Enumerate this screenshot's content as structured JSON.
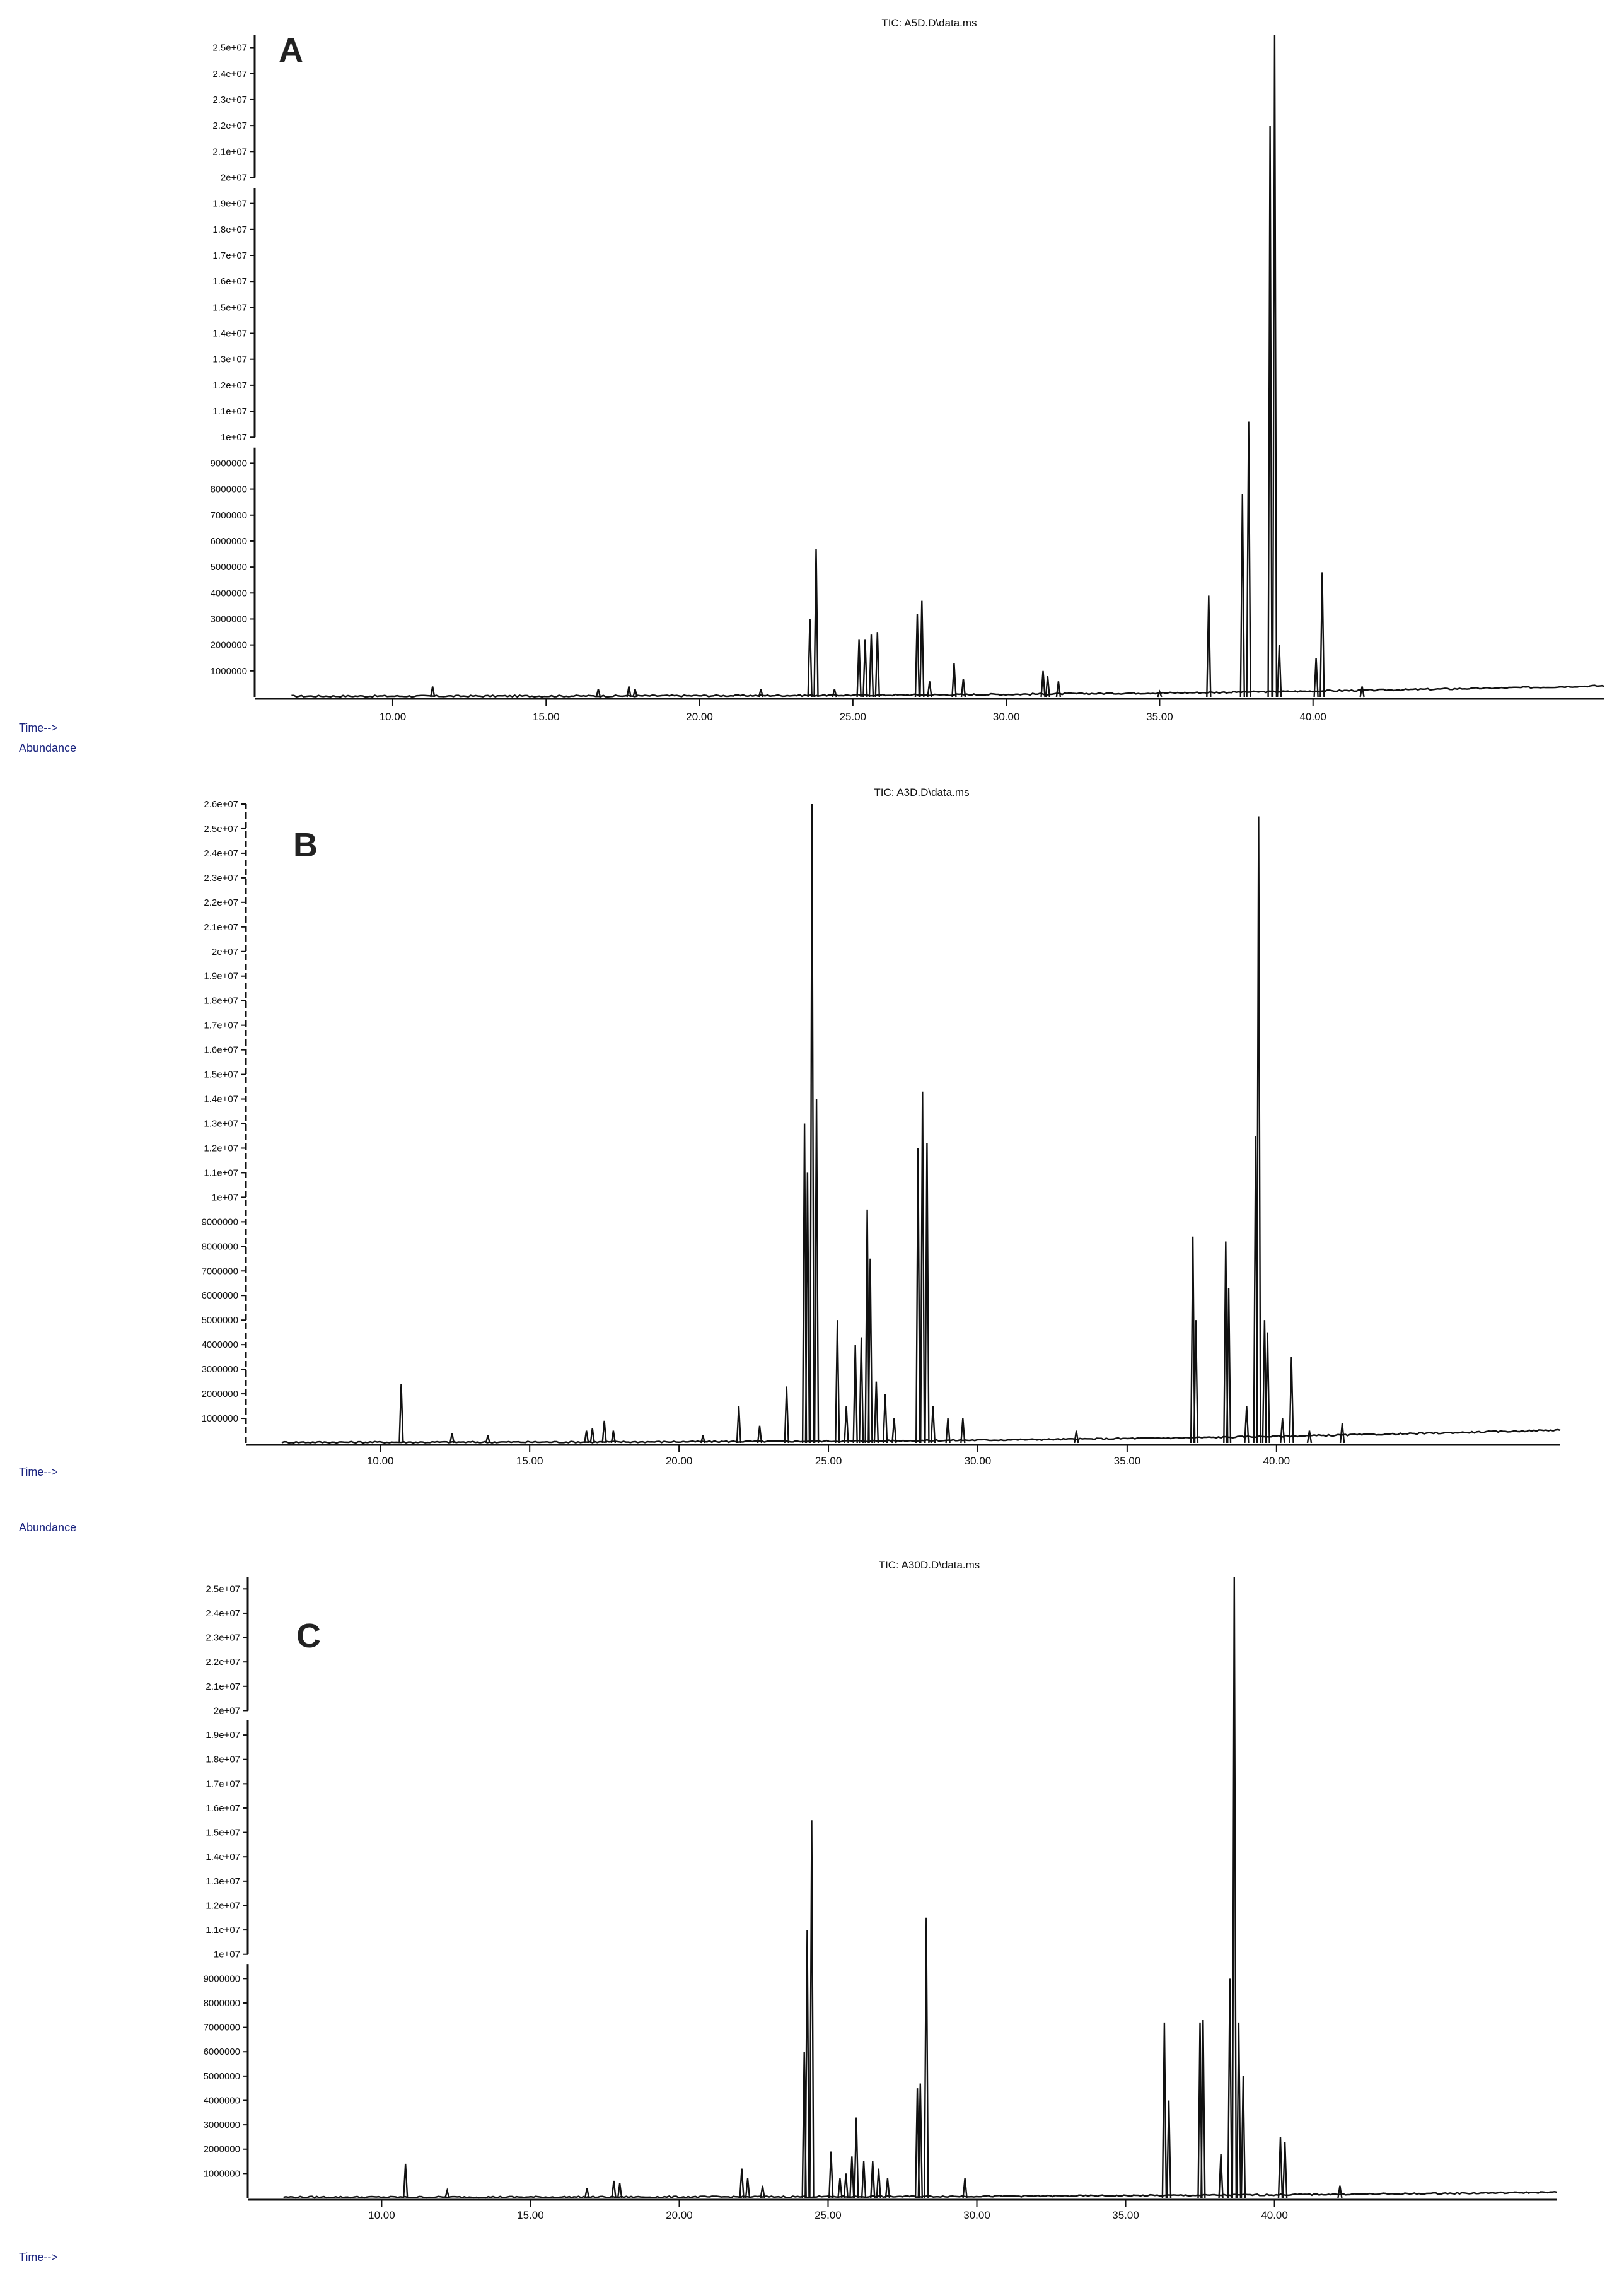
{
  "chart_data": [
    {
      "type": "line",
      "panel_label": "A",
      "title": "TIC: A5D.D\\data.ms",
      "x_axis_label": "Time-->",
      "y_axis_label": "Abundance",
      "y_axis_label_shown_below": true,
      "xlim": [
        5.5,
        49.5
      ],
      "x_ticks": [
        10.0,
        15.0,
        20.0,
        25.0,
        30.0,
        35.0,
        40.0
      ],
      "x_tick_labels": [
        "10.00",
        "15.00",
        "20.00",
        "25.00",
        "30.00",
        "35.00",
        "40.00"
      ],
      "y_axis_broken": true,
      "ylim": [
        0,
        25500000
      ],
      "y_ticks": [
        1000000,
        2000000,
        3000000,
        4000000,
        5000000,
        6000000,
        7000000,
        8000000,
        9000000,
        10000000,
        11000000,
        12000000,
        13000000,
        14000000,
        15000000,
        16000000,
        17000000,
        18000000,
        19000000,
        20000000,
        21000000,
        22000000,
        23000000,
        24000000,
        25000000
      ],
      "y_tick_labels": [
        "1000000",
        "2000000",
        "3000000",
        "4000000",
        "5000000",
        "6000000",
        "7000000",
        "8000000",
        "9000000",
        "1e+07",
        "1.1e+07",
        "1.2e+07",
        "1.3e+07",
        "1.4e+07",
        "1.5e+07",
        "1.6e+07",
        "1.7e+07",
        "1.8e+07",
        "1.9e+07",
        "2e+07",
        "2.1e+07",
        "2.2e+07",
        "2.3e+07",
        "2.4e+07",
        "2.5e+07"
      ],
      "baseline_start": 0,
      "baseline_end": 400000,
      "peaks": [
        [
          11.3,
          400000
        ],
        [
          16.7,
          300000
        ],
        [
          17.7,
          400000
        ],
        [
          17.9,
          300000
        ],
        [
          22.0,
          300000
        ],
        [
          23.6,
          3000000
        ],
        [
          23.8,
          5700000
        ],
        [
          24.4,
          300000
        ],
        [
          25.2,
          2200000
        ],
        [
          25.4,
          2200000
        ],
        [
          25.6,
          2400000
        ],
        [
          25.8,
          2500000
        ],
        [
          27.1,
          3200000
        ],
        [
          27.25,
          3700000
        ],
        [
          27.5,
          600000
        ],
        [
          28.3,
          1300000
        ],
        [
          28.6,
          700000
        ],
        [
          31.2,
          1000000
        ],
        [
          31.35,
          800000
        ],
        [
          31.7,
          600000
        ],
        [
          35.0,
          200000
        ],
        [
          36.6,
          3900000
        ],
        [
          37.7,
          7800000
        ],
        [
          37.9,
          10600000
        ],
        [
          38.6,
          22000000
        ],
        [
          38.75,
          25500000
        ],
        [
          38.9,
          2000000
        ],
        [
          40.1,
          1500000
        ],
        [
          40.3,
          4800000
        ],
        [
          41.6,
          400000
        ]
      ]
    },
    {
      "type": "line",
      "panel_label": "B",
      "title": "TIC: A3D.D\\data.ms",
      "x_axis_label": "Time-->",
      "y_axis_label": "Abundance",
      "y_axis_label_shown_below": true,
      "xlim": [
        5.5,
        49.5
      ],
      "x_ticks": [
        10.0,
        15.0,
        20.0,
        25.0,
        30.0,
        35.0,
        40.0
      ],
      "x_tick_labels": [
        "10.00",
        "15.00",
        "20.00",
        "25.00",
        "30.00",
        "35.00",
        "40.00"
      ],
      "y_axis_broken": false,
      "ylim": [
        0,
        26000000
      ],
      "y_ticks": [
        1000000,
        2000000,
        3000000,
        4000000,
        5000000,
        6000000,
        7000000,
        8000000,
        9000000,
        10000000,
        11000000,
        12000000,
        13000000,
        14000000,
        15000000,
        16000000,
        17000000,
        18000000,
        19000000,
        20000000,
        21000000,
        22000000,
        23000000,
        24000000,
        25000000,
        26000000
      ],
      "y_tick_labels": [
        "1000000",
        "2000000",
        "3000000",
        "4000000",
        "5000000",
        "6000000",
        "7000000",
        "8000000",
        "9000000",
        "1e+07",
        "1.1e+07",
        "1.2e+07",
        "1.3e+07",
        "1.4e+07",
        "1.5e+07",
        "1.6e+07",
        "1.7e+07",
        "1.8e+07",
        "1.9e+07",
        "2e+07",
        "2.1e+07",
        "2.2e+07",
        "2.3e+07",
        "2.4e+07",
        "2.5e+07",
        "2.6e+07"
      ],
      "baseline_start": 0,
      "baseline_end": 500000,
      "peaks": [
        [
          10.7,
          2400000
        ],
        [
          12.4,
          400000
        ],
        [
          13.6,
          300000
        ],
        [
          16.9,
          500000
        ],
        [
          17.1,
          600000
        ],
        [
          17.5,
          900000
        ],
        [
          17.8,
          500000
        ],
        [
          20.8,
          300000
        ],
        [
          22.0,
          1500000
        ],
        [
          22.7,
          700000
        ],
        [
          23.6,
          2300000
        ],
        [
          24.2,
          13000000
        ],
        [
          24.3,
          11000000
        ],
        [
          24.45,
          26000000
        ],
        [
          24.6,
          14000000
        ],
        [
          25.3,
          5000000
        ],
        [
          25.6,
          1500000
        ],
        [
          25.9,
          4000000
        ],
        [
          26.1,
          4300000
        ],
        [
          26.3,
          9500000
        ],
        [
          26.4,
          7500000
        ],
        [
          26.6,
          2500000
        ],
        [
          26.9,
          2000000
        ],
        [
          27.2,
          1000000
        ],
        [
          28.0,
          12000000
        ],
        [
          28.15,
          14300000
        ],
        [
          28.3,
          12200000
        ],
        [
          28.5,
          1500000
        ],
        [
          29.0,
          1000000
        ],
        [
          29.5,
          1000000
        ],
        [
          33.3,
          500000
        ],
        [
          37.2,
          8400000
        ],
        [
          37.3,
          5000000
        ],
        [
          38.3,
          8200000
        ],
        [
          38.4,
          6300000
        ],
        [
          39.0,
          1500000
        ],
        [
          39.3,
          12500000
        ],
        [
          39.4,
          25500000
        ],
        [
          39.6,
          5000000
        ],
        [
          39.7,
          4500000
        ],
        [
          40.2,
          1000000
        ],
        [
          40.5,
          3500000
        ],
        [
          41.1,
          500000
        ],
        [
          42.2,
          800000
        ]
      ]
    },
    {
      "type": "line",
      "panel_label": "C",
      "title": "TIC: A30D.D\\data.ms",
      "x_axis_label": "Time-->",
      "y_axis_label": "",
      "xlim": [
        5.5,
        49.5
      ],
      "x_ticks": [
        10.0,
        15.0,
        20.0,
        25.0,
        30.0,
        35.0,
        40.0
      ],
      "x_tick_labels": [
        "10.00",
        "15.00",
        "20.00",
        "25.00",
        "30.00",
        "35.00",
        "40.00"
      ],
      "y_axis_broken": true,
      "ylim": [
        0,
        25500000
      ],
      "y_ticks": [
        1000000,
        2000000,
        3000000,
        4000000,
        5000000,
        6000000,
        7000000,
        8000000,
        9000000,
        10000000,
        11000000,
        12000000,
        13000000,
        14000000,
        15000000,
        16000000,
        17000000,
        18000000,
        19000000,
        20000000,
        21000000,
        22000000,
        23000000,
        24000000,
        25000000
      ],
      "y_tick_labels": [
        "1000000",
        "2000000",
        "3000000",
        "4000000",
        "5000000",
        "6000000",
        "7000000",
        "8000000",
        "9000000",
        "1e+07",
        "1.1e+07",
        "1.2e+07",
        "1.3e+07",
        "1.4e+07",
        "1.5e+07",
        "1.6e+07",
        "1.7e+07",
        "1.8e+07",
        "1.9e+07",
        "2e+07",
        "2.1e+07",
        "2.2e+07",
        "2.3e+07",
        "2.4e+07",
        "2.5e+07"
      ],
      "baseline_start": 0,
      "baseline_end": 200000,
      "peaks": [
        [
          10.8,
          1400000
        ],
        [
          12.2,
          300000
        ],
        [
          16.9,
          400000
        ],
        [
          17.8,
          700000
        ],
        [
          18.0,
          600000
        ],
        [
          22.1,
          1200000
        ],
        [
          22.3,
          800000
        ],
        [
          22.8,
          500000
        ],
        [
          24.2,
          6000000
        ],
        [
          24.3,
          11000000
        ],
        [
          24.45,
          15500000
        ],
        [
          25.1,
          1900000
        ],
        [
          25.4,
          800000
        ],
        [
          25.6,
          1000000
        ],
        [
          25.8,
          1700000
        ],
        [
          25.95,
          3300000
        ],
        [
          26.2,
          1500000
        ],
        [
          26.5,
          1500000
        ],
        [
          26.7,
          1200000
        ],
        [
          27.0,
          800000
        ],
        [
          28.0,
          4500000
        ],
        [
          28.1,
          4700000
        ],
        [
          28.3,
          11500000
        ],
        [
          29.6,
          800000
        ],
        [
          36.3,
          7200000
        ],
        [
          36.45,
          4000000
        ],
        [
          37.5,
          7200000
        ],
        [
          37.6,
          7300000
        ],
        [
          38.2,
          1800000
        ],
        [
          38.5,
          9000000
        ],
        [
          38.65,
          25500000
        ],
        [
          38.8,
          7200000
        ],
        [
          38.95,
          5000000
        ],
        [
          40.2,
          2500000
        ],
        [
          40.35,
          2300000
        ],
        [
          42.2,
          500000
        ]
      ]
    }
  ]
}
